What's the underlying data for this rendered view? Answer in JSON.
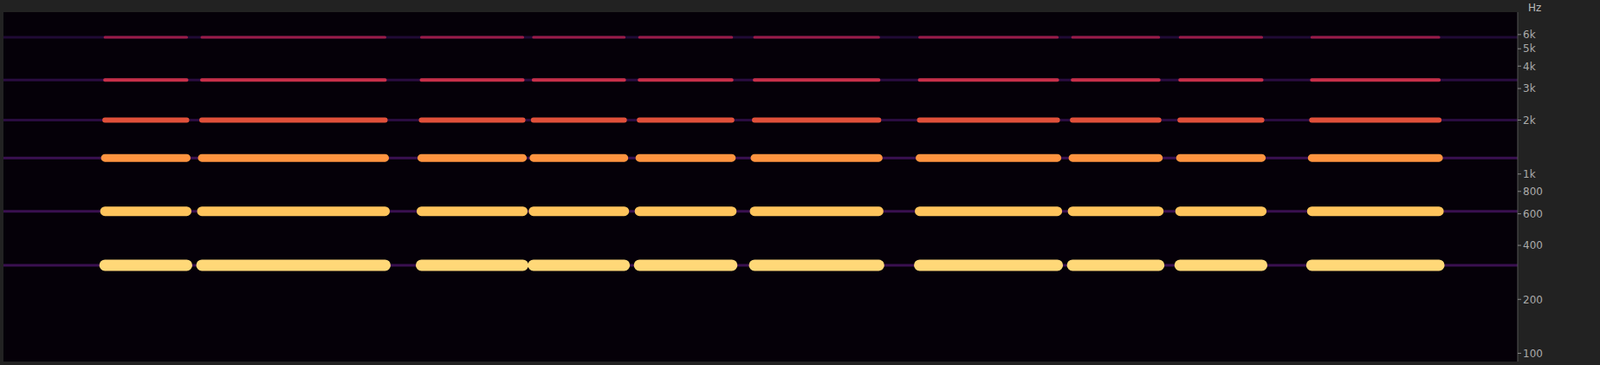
{
  "chart_data": {
    "type": "line",
    "y_label": "Hz",
    "log": "y",
    "grid": false,
    "tick_labels": "y",
    "xlim": [
      0,
      10
    ],
    "ylim": [
      90,
      8000
    ],
    "yticks": [
      100,
      200,
      400,
      600,
      800,
      {
        "value": 1000,
        "label": "1k"
      },
      {
        "value": 2000,
        "label": "2k"
      },
      {
        "value": 3000,
        "label": "3k"
      },
      {
        "value": 4000,
        "label": "4k"
      },
      {
        "value": 5000,
        "label": "5k"
      },
      {
        "value": 6000,
        "label": "6k"
      }
    ],
    "x": [
      0,
      0.67,
      1.21,
      1.26,
      1.31,
      2.52,
      2.64,
      2.76,
      3.43,
      3.47,
      3.5,
      4.1,
      4.15,
      4.2,
      4.81,
      4.88,
      4.96,
      5.78,
      5.91,
      6.05,
      6.96,
      7.01,
      7.06,
      7.63,
      7.7,
      7.77,
      8.31,
      8.47,
      8.64,
      9.48,
      10
    ],
    "series": [
      {
        "color": "#3a1050",
        "line_style": "thin",
        "values": [
          310,
          310,
          310,
          310,
          310,
          310,
          310,
          310,
          310,
          310,
          310,
          310,
          310,
          310,
          310,
          310,
          310,
          310,
          310,
          310,
          310,
          310,
          310,
          310,
          310,
          310,
          310,
          310,
          310,
          310,
          310
        ]
      },
      {
        "color": "#3a1050",
        "line_style": "thin",
        "values": [
          620,
          620,
          620,
          620,
          620,
          620,
          620,
          620,
          620,
          620,
          620,
          620,
          620,
          620,
          620,
          620,
          620,
          620,
          620,
          620,
          620,
          620,
          620,
          620,
          620,
          620,
          620,
          620,
          620,
          620,
          620
        ]
      },
      {
        "color": "#3a1050",
        "line_style": "thin",
        "values": [
          1230,
          1230,
          1230,
          1230,
          1230,
          1230,
          1230,
          1230,
          1230,
          1230,
          1230,
          1230,
          1230,
          1230,
          1230,
          1230,
          1230,
          1230,
          1230,
          1230,
          1230,
          1230,
          1230,
          1230,
          1230,
          1230,
          1230,
          1230,
          1230,
          1230,
          1230
        ]
      },
      {
        "color": "#2a0c40",
        "line_style": "thin",
        "values": [
          2000,
          2000,
          2000,
          2000,
          2000,
          2000,
          2000,
          2000,
          2000,
          2000,
          2000,
          2000,
          2000,
          2000,
          2000,
          2000,
          2000,
          2000,
          2000,
          2000,
          2000,
          2000,
          2000,
          2000,
          2000,
          2000,
          2000,
          2000,
          2000,
          2000,
          2000
        ]
      },
      {
        "color": "#2a0c40",
        "line_style": "thin",
        "values": [
          3350,
          3350,
          3350,
          3350,
          3350,
          3350,
          3350,
          3350,
          3350,
          3350,
          3350,
          3350,
          3350,
          3350,
          3350,
          3350,
          3350,
          3350,
          3350,
          3350,
          3350,
          3350,
          3350,
          3350,
          3350,
          3350,
          3350,
          3350,
          3350,
          3350,
          3350
        ]
      },
      {
        "color": "#200a35",
        "line_style": "thin",
        "values": [
          5800,
          5800,
          5800,
          5800,
          5800,
          5800,
          5800,
          5800,
          5800,
          5800,
          5800,
          5800,
          5800,
          5800,
          5800,
          5800,
          5800,
          5800,
          5800,
          5800,
          5800,
          5800,
          5800,
          5800,
          5800,
          5800,
          5800,
          5800,
          5800,
          5800,
          5800
        ]
      },
      {
        "color": "#ffd878",
        "line_style": "thick",
        "values": [
          null,
          310,
          310,
          null,
          310,
          310,
          null,
          310,
          310,
          null,
          310,
          310,
          null,
          310,
          310,
          null,
          310,
          310,
          null,
          310,
          310,
          null,
          310,
          310,
          null,
          310,
          310,
          null,
          310,
          310,
          null
        ]
      },
      {
        "color": "#ffc45c",
        "line_style": "thick",
        "values": [
          null,
          620,
          620,
          null,
          620,
          620,
          null,
          620,
          620,
          null,
          620,
          620,
          null,
          620,
          620,
          null,
          620,
          620,
          null,
          620,
          620,
          null,
          620,
          620,
          null,
          620,
          620,
          null,
          620,
          620,
          null
        ]
      },
      {
        "color": "#ff9440",
        "line_style": "thick",
        "values": [
          null,
          1230,
          1230,
          null,
          1230,
          1230,
          null,
          1230,
          1230,
          null,
          1230,
          1230,
          null,
          1230,
          1230,
          null,
          1230,
          1230,
          null,
          1230,
          1230,
          null,
          1230,
          1230,
          null,
          1230,
          1230,
          null,
          1230,
          1230,
          null
        ]
      },
      {
        "color": "#e0503a",
        "line_style": "thick",
        "values": [
          null,
          2000,
          2000,
          null,
          2000,
          2000,
          null,
          2000,
          2000,
          null,
          2000,
          2000,
          null,
          2000,
          2000,
          null,
          2000,
          2000,
          null,
          2000,
          2000,
          null,
          2000,
          2000,
          null,
          2000,
          2000,
          null,
          2000,
          2000,
          null
        ]
      },
      {
        "color": "#c8304a",
        "line_style": "thick",
        "values": [
          null,
          3350,
          3350,
          null,
          3350,
          3350,
          null,
          3350,
          3350,
          null,
          3350,
          3350,
          null,
          3350,
          3350,
          null,
          3350,
          3350,
          null,
          3350,
          3350,
          null,
          3350,
          3350,
          null,
          3350,
          3350,
          null,
          3350,
          3350,
          null
        ]
      },
      {
        "color": "#9a1c48",
        "line_style": "thick",
        "values": [
          null,
          5800,
          5800,
          null,
          5800,
          5800,
          null,
          5800,
          5800,
          null,
          5800,
          5800,
          null,
          5800,
          5800,
          null,
          5800,
          5800,
          null,
          5800,
          5800,
          null,
          5800,
          5800,
          null,
          5800,
          5800,
          null,
          5800,
          5800,
          null
        ]
      }
    ]
  }
}
